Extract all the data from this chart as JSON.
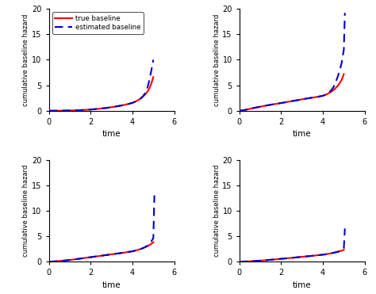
{
  "xlabel": "time",
  "ylabel": "cumulative baseline hazard",
  "xlim": [
    0,
    6
  ],
  "ylim": [
    0,
    20
  ],
  "xticks": [
    0,
    2,
    4,
    6
  ],
  "yticks": [
    0,
    5,
    10,
    15,
    20
  ],
  "true_color": "#ff0000",
  "est_color": "#0000cc",
  "true_lw": 1.5,
  "est_lw": 1.5,
  "legend_labels": [
    "true baseline",
    "estimated baseline"
  ],
  "subplots": [
    {
      "true_x": [
        0.0,
        0.25,
        0.5,
        0.75,
        1.0,
        1.25,
        1.5,
        1.75,
        2.0,
        2.25,
        2.5,
        2.75,
        3.0,
        3.25,
        3.5,
        3.75,
        4.0,
        4.1,
        4.2,
        4.3,
        4.4,
        4.5,
        4.6,
        4.7,
        4.8,
        4.9,
        5.0
      ],
      "true_y": [
        0.0,
        0.005,
        0.015,
        0.03,
        0.05,
        0.08,
        0.12,
        0.18,
        0.25,
        0.34,
        0.44,
        0.56,
        0.7,
        0.87,
        1.06,
        1.28,
        1.55,
        1.72,
        1.92,
        2.15,
        2.42,
        2.75,
        3.15,
        3.65,
        4.3,
        5.3,
        6.6
      ],
      "est_x": [
        0.0,
        0.25,
        0.5,
        0.75,
        1.0,
        1.25,
        1.5,
        1.75,
        2.0,
        2.25,
        2.5,
        2.75,
        3.0,
        3.25,
        3.5,
        3.75,
        4.0,
        4.1,
        4.2,
        4.3,
        4.4,
        4.5,
        4.6,
        4.7,
        4.8,
        4.9,
        5.0
      ],
      "est_y": [
        0.0,
        0.005,
        0.015,
        0.03,
        0.05,
        0.08,
        0.12,
        0.18,
        0.25,
        0.34,
        0.44,
        0.56,
        0.7,
        0.87,
        1.06,
        1.28,
        1.55,
        1.72,
        1.92,
        2.15,
        2.45,
        2.85,
        3.4,
        4.3,
        5.8,
        7.8,
        10.0
      ],
      "show_legend": true
    },
    {
      "true_x": [
        0.0,
        0.1,
        0.25,
        0.5,
        0.75,
        1.0,
        1.25,
        1.5,
        1.75,
        2.0,
        2.25,
        2.5,
        2.75,
        3.0,
        3.25,
        3.5,
        3.75,
        4.0,
        4.1,
        4.2,
        4.3,
        4.4,
        4.5,
        4.6,
        4.7,
        4.8,
        4.9,
        5.0
      ],
      "true_y": [
        0.0,
        0.05,
        0.15,
        0.38,
        0.6,
        0.8,
        1.0,
        1.18,
        1.35,
        1.52,
        1.7,
        1.88,
        2.06,
        2.25,
        2.42,
        2.58,
        2.74,
        2.95,
        3.1,
        3.28,
        3.5,
        3.75,
        4.05,
        4.42,
        4.85,
        5.4,
        6.1,
        7.2
      ],
      "est_x": [
        0.0,
        0.1,
        0.25,
        0.5,
        0.75,
        1.0,
        1.25,
        1.5,
        1.75,
        2.0,
        2.25,
        2.5,
        2.75,
        3.0,
        3.25,
        3.5,
        3.75,
        4.0,
        4.1,
        4.2,
        4.3,
        4.4,
        4.5,
        4.6,
        4.7,
        4.8,
        4.9,
        5.0,
        5.05
      ],
      "est_y": [
        0.0,
        0.05,
        0.15,
        0.38,
        0.6,
        0.8,
        1.0,
        1.18,
        1.35,
        1.52,
        1.7,
        1.88,
        2.06,
        2.25,
        2.42,
        2.58,
        2.74,
        2.95,
        3.1,
        3.35,
        3.65,
        4.05,
        4.6,
        5.5,
        6.6,
        7.8,
        9.5,
        12.0,
        19.2
      ],
      "show_legend": false
    },
    {
      "true_x": [
        0.0,
        0.25,
        0.5,
        0.75,
        1.0,
        1.25,
        1.5,
        1.75,
        2.0,
        2.25,
        2.5,
        2.75,
        3.0,
        3.25,
        3.5,
        3.75,
        4.0,
        4.1,
        4.2,
        4.3,
        4.4,
        4.5,
        4.6,
        4.7,
        4.8,
        4.9,
        5.0
      ],
      "true_y": [
        0.0,
        0.05,
        0.12,
        0.22,
        0.33,
        0.46,
        0.6,
        0.74,
        0.88,
        1.02,
        1.16,
        1.3,
        1.44,
        1.58,
        1.72,
        1.87,
        2.03,
        2.13,
        2.24,
        2.36,
        2.5,
        2.65,
        2.82,
        3.0,
        3.22,
        3.5,
        3.8
      ],
      "est_x": [
        0.0,
        0.25,
        0.5,
        0.75,
        1.0,
        1.25,
        1.5,
        1.75,
        2.0,
        2.25,
        2.5,
        2.75,
        3.0,
        3.25,
        3.5,
        3.75,
        4.0,
        4.1,
        4.2,
        4.3,
        4.4,
        4.5,
        4.6,
        4.7,
        4.8,
        4.9,
        5.0,
        5.05
      ],
      "est_y": [
        0.0,
        0.05,
        0.12,
        0.22,
        0.33,
        0.46,
        0.6,
        0.74,
        0.88,
        1.02,
        1.16,
        1.3,
        1.44,
        1.58,
        1.72,
        1.87,
        2.03,
        2.13,
        2.24,
        2.36,
        2.5,
        2.65,
        2.85,
        3.1,
        3.45,
        3.95,
        4.6,
        13.0
      ],
      "show_legend": false
    },
    {
      "true_x": [
        0.0,
        0.25,
        0.5,
        0.75,
        1.0,
        1.25,
        1.5,
        1.75,
        2.0,
        2.25,
        2.5,
        2.75,
        3.0,
        3.25,
        3.5,
        3.75,
        4.0,
        4.1,
        4.2,
        4.3,
        4.4,
        4.5,
        4.6,
        4.7,
        4.8,
        4.9,
        5.0
      ],
      "true_y": [
        0.0,
        0.03,
        0.07,
        0.13,
        0.2,
        0.28,
        0.37,
        0.46,
        0.56,
        0.65,
        0.75,
        0.85,
        0.95,
        1.05,
        1.15,
        1.26,
        1.37,
        1.43,
        1.5,
        1.57,
        1.65,
        1.74,
        1.83,
        1.93,
        2.04,
        2.16,
        2.3
      ],
      "est_x": [
        0.0,
        0.25,
        0.5,
        0.75,
        1.0,
        1.25,
        1.5,
        1.75,
        2.0,
        2.25,
        2.5,
        2.75,
        3.0,
        3.25,
        3.5,
        3.75,
        4.0,
        4.1,
        4.2,
        4.3,
        4.4,
        4.5,
        4.6,
        4.7,
        4.8,
        4.9,
        5.0,
        5.05
      ],
      "est_y": [
        0.0,
        0.03,
        0.07,
        0.13,
        0.2,
        0.28,
        0.37,
        0.46,
        0.56,
        0.65,
        0.75,
        0.85,
        0.95,
        1.05,
        1.15,
        1.26,
        1.37,
        1.43,
        1.5,
        1.57,
        1.65,
        1.74,
        1.83,
        1.93,
        2.06,
        2.25,
        2.6,
        6.5
      ],
      "show_legend": false
    }
  ]
}
